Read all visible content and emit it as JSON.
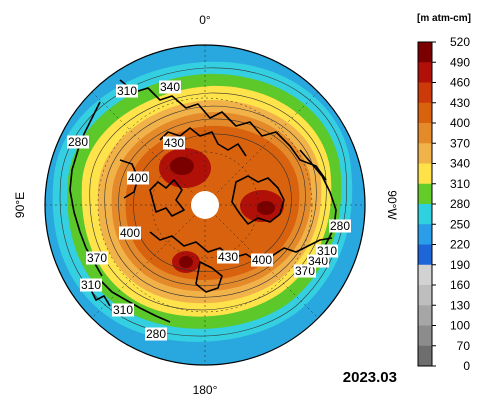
{
  "map": {
    "date": "2023.03",
    "axis_labels": {
      "top": "0°",
      "bottom": "180°",
      "left": "90°E",
      "right": "90°W"
    }
  },
  "colorbar": {
    "unit": "[m atm-cm]",
    "ticks": [
      "520",
      "490",
      "460",
      "430",
      "400",
      "370",
      "340",
      "310",
      "280",
      "250",
      "220",
      "190",
      "160",
      "130",
      "100",
      "70",
      "0"
    ],
    "colors": [
      "#7a0000",
      "#b01008",
      "#cc3a0a",
      "#d9620e",
      "#e58a2a",
      "#f2b24a",
      "#ffe24a",
      "#64cc2a",
      "#2fd0e0",
      "#2a9ee8",
      "#1e66d8",
      "#d2d2d2",
      "#bebebe",
      "#a6a6a6",
      "#8c8c8c",
      "#6e6e6e"
    ]
  },
  "contour_labels": [
    {
      "id": "c310-top",
      "text": "310"
    },
    {
      "id": "c340-top",
      "text": "340"
    },
    {
      "id": "c280-left",
      "text": "280"
    },
    {
      "id": "c430-top",
      "text": "430"
    },
    {
      "id": "c400-left",
      "text": "400"
    },
    {
      "id": "c400-lower",
      "text": "400"
    },
    {
      "id": "c370-left",
      "text": "370"
    },
    {
      "id": "c310-left",
      "text": "310"
    },
    {
      "id": "c310-bottom",
      "text": "310"
    },
    {
      "id": "c280-bottom",
      "text": "280"
    },
    {
      "id": "c430-bottom",
      "text": "430"
    },
    {
      "id": "c400-right",
      "text": "400"
    },
    {
      "id": "c370-right",
      "text": "370"
    },
    {
      "id": "c340-right",
      "text": "340"
    },
    {
      "id": "c310-right",
      "text": "310"
    },
    {
      "id": "c280-right",
      "text": "280"
    }
  ],
  "colors": {
    "outer_ring": "#29a8e0",
    "land_outline": "#000000",
    "pole_hole": "#ffffff"
  }
}
